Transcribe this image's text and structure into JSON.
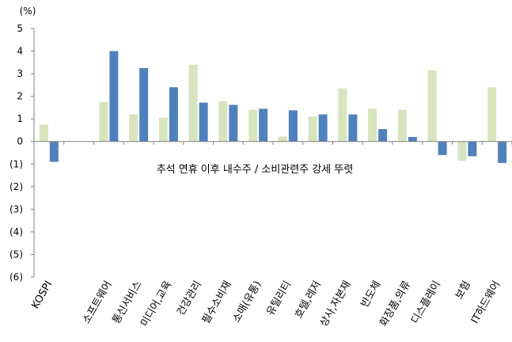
{
  "chart_data": {
    "type": "bar",
    "unit_label": "(%)",
    "annotation": "추석 연휴 이후 내수주 / 소비관련주  강세 뚜렷",
    "y_tick_labels": [
      "5",
      "4",
      "3",
      "2",
      "1",
      "0",
      "(1)",
      "(2)",
      "(3)",
      "(4)",
      "(5)",
      "(6)"
    ],
    "ylim": [
      -6,
      5
    ],
    "categories": [
      "KOSPI",
      "",
      "소프트웨어",
      "통신서비스",
      "미디어,교육",
      "건강관리",
      "필수소비재",
      "소매(유통)",
      "유틸리티",
      "호텔,레저",
      "상사,자본재",
      "반도체",
      "화장품,의류",
      "디스플레이",
      "보험",
      "IT하드웨어"
    ],
    "series": [
      {
        "color": "#d7e4bd",
        "values": [
          0.75,
          null,
          1.75,
          1.2,
          1.05,
          3.4,
          1.78,
          1.4,
          0.22,
          1.1,
          2.35,
          1.45,
          1.4,
          3.15,
          -0.85,
          2.4
        ]
      },
      {
        "color": "#4f81bd",
        "values": [
          -0.9,
          null,
          4.0,
          3.25,
          2.4,
          1.72,
          1.62,
          1.45,
          1.38,
          1.2,
          1.2,
          0.55,
          0.2,
          -0.6,
          -0.65,
          -0.95
        ]
      }
    ],
    "grid": false,
    "legend": "none"
  }
}
